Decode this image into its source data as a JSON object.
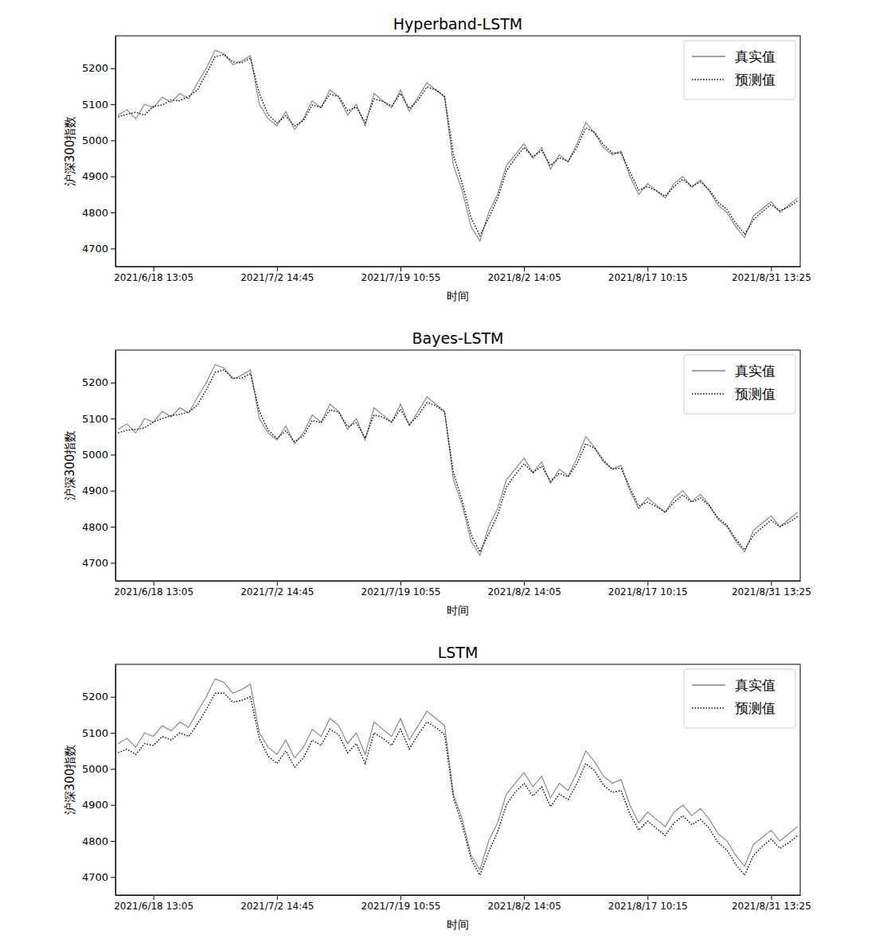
{
  "chart_data": [
    {
      "type": "line",
      "title": "Hyperband-LSTM",
      "x_label": "时间",
      "y_label": "沪深300指数",
      "categories": [
        null,
        null,
        null,
        null,
        "2021/6/18 13:05",
        null,
        null,
        null,
        null,
        null,
        null,
        null,
        null,
        null,
        null,
        null,
        null,
        null,
        "2021/7/2 14:45",
        null,
        null,
        null,
        null,
        null,
        null,
        null,
        null,
        null,
        null,
        null,
        null,
        null,
        "2021/7/19 10:55",
        null,
        null,
        null,
        null,
        null,
        null,
        null,
        null,
        null,
        null,
        null,
        null,
        null,
        "2021/8/2 14:05",
        null,
        null,
        null,
        null,
        null,
        null,
        null,
        null,
        null,
        null,
        null,
        null,
        null,
        "2021/8/17 10:15",
        null,
        null,
        null,
        null,
        null,
        null,
        null,
        null,
        null,
        null,
        null,
        null,
        null,
        "2021/8/31 13:25",
        null,
        null,
        null
      ],
      "series": [
        {
          "name": "真实值",
          "color": "#808080",
          "line_style": "solid",
          "values": [
            5070,
            5085,
            5060,
            5100,
            5090,
            5120,
            5105,
            5130,
            5115,
            5160,
            5200,
            5250,
            5240,
            5210,
            5220,
            5235,
            5100,
            5060,
            5040,
            5080,
            5030,
            5060,
            5110,
            5090,
            5140,
            5120,
            5070,
            5100,
            5040,
            5130,
            5110,
            5090,
            5140,
            5080,
            5120,
            5160,
            5140,
            5120,
            4930,
            4860,
            4760,
            4720,
            4800,
            4850,
            4930,
            4960,
            4990,
            4950,
            4980,
            4920,
            4960,
            4940,
            4990,
            5050,
            5020,
            4980,
            4960,
            4970,
            4900,
            4850,
            4880,
            4860,
            4840,
            4880,
            4900,
            4870,
            4890,
            4860,
            4820,
            4800,
            4760,
            4730,
            4790,
            4810,
            4830,
            4800,
            4820,
            4840
          ]
        },
        {
          "name": "预测值",
          "color": "#000000",
          "line_style": "dotted",
          "values": [
            5065,
            5072,
            5078,
            5070,
            5095,
            5098,
            5112,
            5110,
            5122,
            5140,
            5185,
            5232,
            5238,
            5218,
            5215,
            5228,
            5130,
            5072,
            5048,
            5068,
            5040,
            5055,
            5098,
            5092,
            5128,
            5122,
            5082,
            5092,
            5050,
            5115,
            5108,
            5095,
            5130,
            5088,
            5112,
            5148,
            5140,
            5122,
            4960,
            4880,
            4785,
            4735,
            4785,
            4838,
            4915,
            4950,
            4980,
            4955,
            4972,
            4930,
            4952,
            4942,
            4980,
            5035,
            5022,
            4988,
            4965,
            4965,
            4912,
            4862,
            4872,
            4860,
            4845,
            4872,
            4892,
            4872,
            4885,
            4862,
            4828,
            4808,
            4770,
            4740,
            4780,
            4802,
            4822,
            4805,
            4815,
            4832
          ]
        }
      ],
      "ylim": [
        4650,
        5290
      ],
      "yticks": [
        4700,
        4800,
        4900,
        5000,
        5100,
        5200
      ],
      "legend": "upper right",
      "grid": false
    },
    {
      "type": "line",
      "title": "Bayes-LSTM",
      "x_label": "时间",
      "y_label": "沪深300指数",
      "categories": [
        null,
        null,
        null,
        null,
        "2021/6/18 13:05",
        null,
        null,
        null,
        null,
        null,
        null,
        null,
        null,
        null,
        null,
        null,
        null,
        null,
        "2021/7/2 14:45",
        null,
        null,
        null,
        null,
        null,
        null,
        null,
        null,
        null,
        null,
        null,
        null,
        null,
        "2021/7/19 10:55",
        null,
        null,
        null,
        null,
        null,
        null,
        null,
        null,
        null,
        null,
        null,
        null,
        null,
        "2021/8/2 14:05",
        null,
        null,
        null,
        null,
        null,
        null,
        null,
        null,
        null,
        null,
        null,
        null,
        null,
        "2021/8/17 10:15",
        null,
        null,
        null,
        null,
        null,
        null,
        null,
        null,
        null,
        null,
        null,
        null,
        null,
        "2021/8/31 13:25",
        null,
        null,
        null
      ],
      "series": [
        {
          "name": "真实值",
          "color": "#808080",
          "line_style": "solid",
          "values": [
            5070,
            5085,
            5060,
            5100,
            5090,
            5120,
            5105,
            5130,
            5115,
            5160,
            5200,
            5250,
            5240,
            5210,
            5220,
            5235,
            5100,
            5060,
            5040,
            5080,
            5030,
            5060,
            5110,
            5090,
            5140,
            5120,
            5070,
            5100,
            5040,
            5130,
            5110,
            5090,
            5140,
            5080,
            5120,
            5160,
            5140,
            5120,
            4930,
            4860,
            4760,
            4720,
            4800,
            4850,
            4930,
            4960,
            4990,
            4950,
            4980,
            4920,
            4960,
            4940,
            4990,
            5050,
            5020,
            4980,
            4960,
            4970,
            4900,
            4850,
            4880,
            4860,
            4840,
            4880,
            4900,
            4870,
            4890,
            4860,
            4820,
            4800,
            4760,
            4730,
            4790,
            4810,
            4830,
            4800,
            4820,
            4840
          ]
        },
        {
          "name": "预测值",
          "color": "#000000",
          "line_style": "dotted",
          "values": [
            5060,
            5068,
            5070,
            5074,
            5090,
            5100,
            5108,
            5112,
            5118,
            5138,
            5180,
            5228,
            5235,
            5212,
            5212,
            5225,
            5120,
            5068,
            5045,
            5066,
            5036,
            5052,
            5095,
            5088,
            5124,
            5118,
            5078,
            5088,
            5046,
            5110,
            5104,
            5090,
            5126,
            5084,
            5108,
            5144,
            5136,
            5118,
            4950,
            4872,
            4778,
            4730,
            4780,
            4832,
            4910,
            4944,
            4975,
            4950,
            4968,
            4926,
            4948,
            4938,
            4975,
            5030,
            5018,
            4984,
            4960,
            4962,
            4908,
            4858,
            4868,
            4856,
            4840,
            4868,
            4888,
            4868,
            4880,
            4858,
            4824,
            4804,
            4766,
            4736,
            4776,
            4798,
            4818,
            4800,
            4812,
            4828
          ]
        }
      ],
      "ylim": [
        4650,
        5290
      ],
      "yticks": [
        4700,
        4800,
        4900,
        5000,
        5100,
        5200
      ],
      "legend": "upper right",
      "grid": false
    },
    {
      "type": "line",
      "title": "LSTM",
      "x_label": "时间",
      "y_label": "沪深300指数",
      "categories": [
        null,
        null,
        null,
        null,
        "2021/6/18 13:05",
        null,
        null,
        null,
        null,
        null,
        null,
        null,
        null,
        null,
        null,
        null,
        null,
        null,
        "2021/7/2 14:45",
        null,
        null,
        null,
        null,
        null,
        null,
        null,
        null,
        null,
        null,
        null,
        null,
        null,
        "2021/7/19 10:55",
        null,
        null,
        null,
        null,
        null,
        null,
        null,
        null,
        null,
        null,
        null,
        null,
        null,
        "2021/8/2 14:05",
        null,
        null,
        null,
        null,
        null,
        null,
        null,
        null,
        null,
        null,
        null,
        null,
        null,
        "2021/8/17 10:15",
        null,
        null,
        null,
        null,
        null,
        null,
        null,
        null,
        null,
        null,
        null,
        null,
        null,
        "2021/8/31 13:25",
        null,
        null,
        null
      ],
      "series": [
        {
          "name": "真实值",
          "color": "#808080",
          "line_style": "solid",
          "values": [
            5070,
            5085,
            5060,
            5100,
            5090,
            5120,
            5105,
            5130,
            5115,
            5160,
            5200,
            5250,
            5240,
            5210,
            5220,
            5235,
            5100,
            5060,
            5040,
            5080,
            5030,
            5060,
            5110,
            5090,
            5140,
            5120,
            5070,
            5100,
            5040,
            5130,
            5110,
            5090,
            5140,
            5080,
            5120,
            5160,
            5140,
            5120,
            4930,
            4860,
            4760,
            4720,
            4800,
            4850,
            4930,
            4960,
            4990,
            4950,
            4980,
            4920,
            4960,
            4940,
            4990,
            5050,
            5020,
            4980,
            4960,
            4970,
            4900,
            4850,
            4880,
            4860,
            4840,
            4880,
            4900,
            4870,
            4890,
            4860,
            4820,
            4800,
            4760,
            4730,
            4790,
            4810,
            4830,
            4800,
            4820,
            4840
          ]
        },
        {
          "name": "预测值",
          "color": "#000000",
          "line_style": "dotted",
          "values": [
            5045,
            5055,
            5040,
            5070,
            5065,
            5090,
            5080,
            5100,
            5090,
            5125,
            5165,
            5210,
            5210,
            5185,
            5190,
            5200,
            5085,
            5035,
            5015,
            5050,
            5005,
            5030,
            5080,
            5065,
            5110,
            5095,
            5045,
            5070,
            5015,
            5100,
            5085,
            5065,
            5110,
            5055,
            5095,
            5130,
            5115,
            5095,
            4920,
            4845,
            4750,
            4705,
            4770,
            4825,
            4900,
            4935,
            4960,
            4925,
            4950,
            4895,
            4930,
            4915,
            4960,
            5015,
            4995,
            4955,
            4935,
            4940,
            4875,
            4830,
            4855,
            4835,
            4815,
            4850,
            4870,
            4845,
            4860,
            4835,
            4795,
            4775,
            4735,
            4705,
            4760,
            4785,
            4805,
            4780,
            4795,
            4815
          ]
        }
      ],
      "ylim": [
        4650,
        5290
      ],
      "yticks": [
        4700,
        4800,
        4900,
        5000,
        5100,
        5200
      ],
      "legend": "upper right",
      "grid": false
    }
  ]
}
